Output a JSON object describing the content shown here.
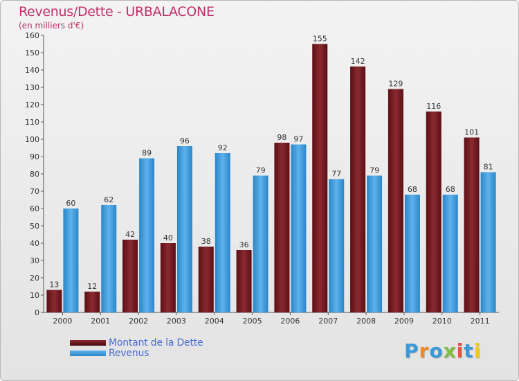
{
  "title": "Revenus/Dette - URBALACONE",
  "subtitle": "(en milliers d'€)",
  "logo": {
    "text": "Proxiti",
    "colors": [
      "#3a9ad9",
      "#f08a24",
      "#3a9ad9",
      "#7fbf3f",
      "#e94f3f",
      "#3a9ad9",
      "#f2c81f"
    ]
  },
  "colors": {
    "dette": "#6e1a1f",
    "revenus": "#3a9ad9"
  },
  "chart_data": {
    "type": "bar",
    "title": "Revenus/Dette - URBALACONE",
    "ylabel": "(en milliers d'€)",
    "xlabel": "",
    "categories": [
      "2000",
      "2001",
      "2002",
      "2003",
      "2004",
      "2005",
      "2006",
      "2007",
      "2008",
      "2009",
      "2010",
      "2011"
    ],
    "series": [
      {
        "name": "Montant de la Dette",
        "values": [
          13,
          12,
          42,
          40,
          38,
          36,
          98,
          155,
          142,
          129,
          116,
          101
        ]
      },
      {
        "name": "Revenus",
        "values": [
          60,
          62,
          89,
          96,
          92,
          79,
          97,
          77,
          79,
          68,
          68,
          81
        ]
      }
    ],
    "ylim": [
      0,
      160
    ],
    "yticks": [
      0,
      10,
      20,
      30,
      40,
      50,
      60,
      70,
      80,
      90,
      100,
      110,
      120,
      130,
      140,
      150,
      160
    ],
    "grid": false,
    "legend": "bottom-left"
  }
}
